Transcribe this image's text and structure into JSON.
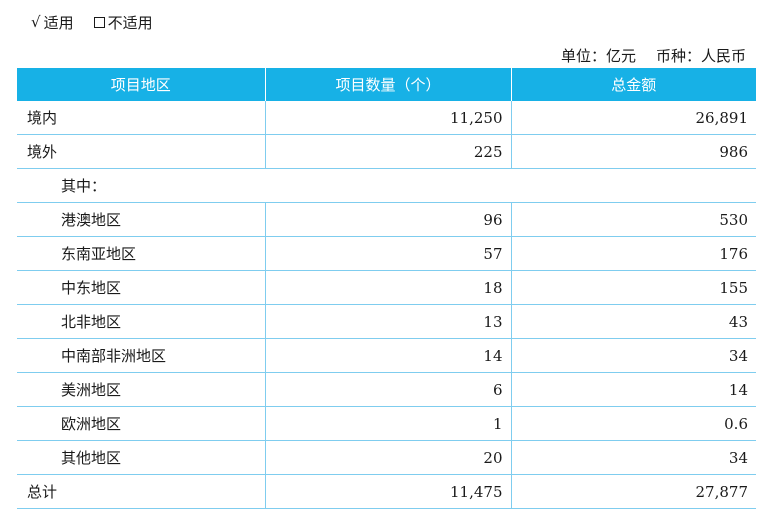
{
  "applicability": {
    "applicable_mark": "√",
    "applicable_label": "适用",
    "not_applicable_label": "不适用"
  },
  "unit_line": {
    "unit": "单位：亿元",
    "currency": "币种：人民币"
  },
  "table": {
    "headers": [
      "项目地区",
      "项目数量（个）",
      "总金额"
    ],
    "rows": [
      {
        "region": "境内",
        "count": "11,250",
        "amount": "26,891"
      },
      {
        "region": "境外",
        "count": "225",
        "amount": "986"
      },
      {
        "region": "其中：",
        "count": "",
        "amount": ""
      },
      {
        "region": "港澳地区",
        "count": "96",
        "amount": "530"
      },
      {
        "region": "东南亚地区",
        "count": "57",
        "amount": "176"
      },
      {
        "region": "中东地区",
        "count": "18",
        "amount": "155"
      },
      {
        "region": "北非地区",
        "count": "13",
        "amount": "43"
      },
      {
        "region": "中南部非洲地区",
        "count": "14",
        "amount": "34"
      },
      {
        "region": "美洲地区",
        "count": "6",
        "amount": "14"
      },
      {
        "region": "欧洲地区",
        "count": "1",
        "amount": "0.6"
      },
      {
        "region": "其他地区",
        "count": "20",
        "amount": "34"
      },
      {
        "region": "总计",
        "count": "11,475",
        "amount": "27,877"
      }
    ]
  }
}
